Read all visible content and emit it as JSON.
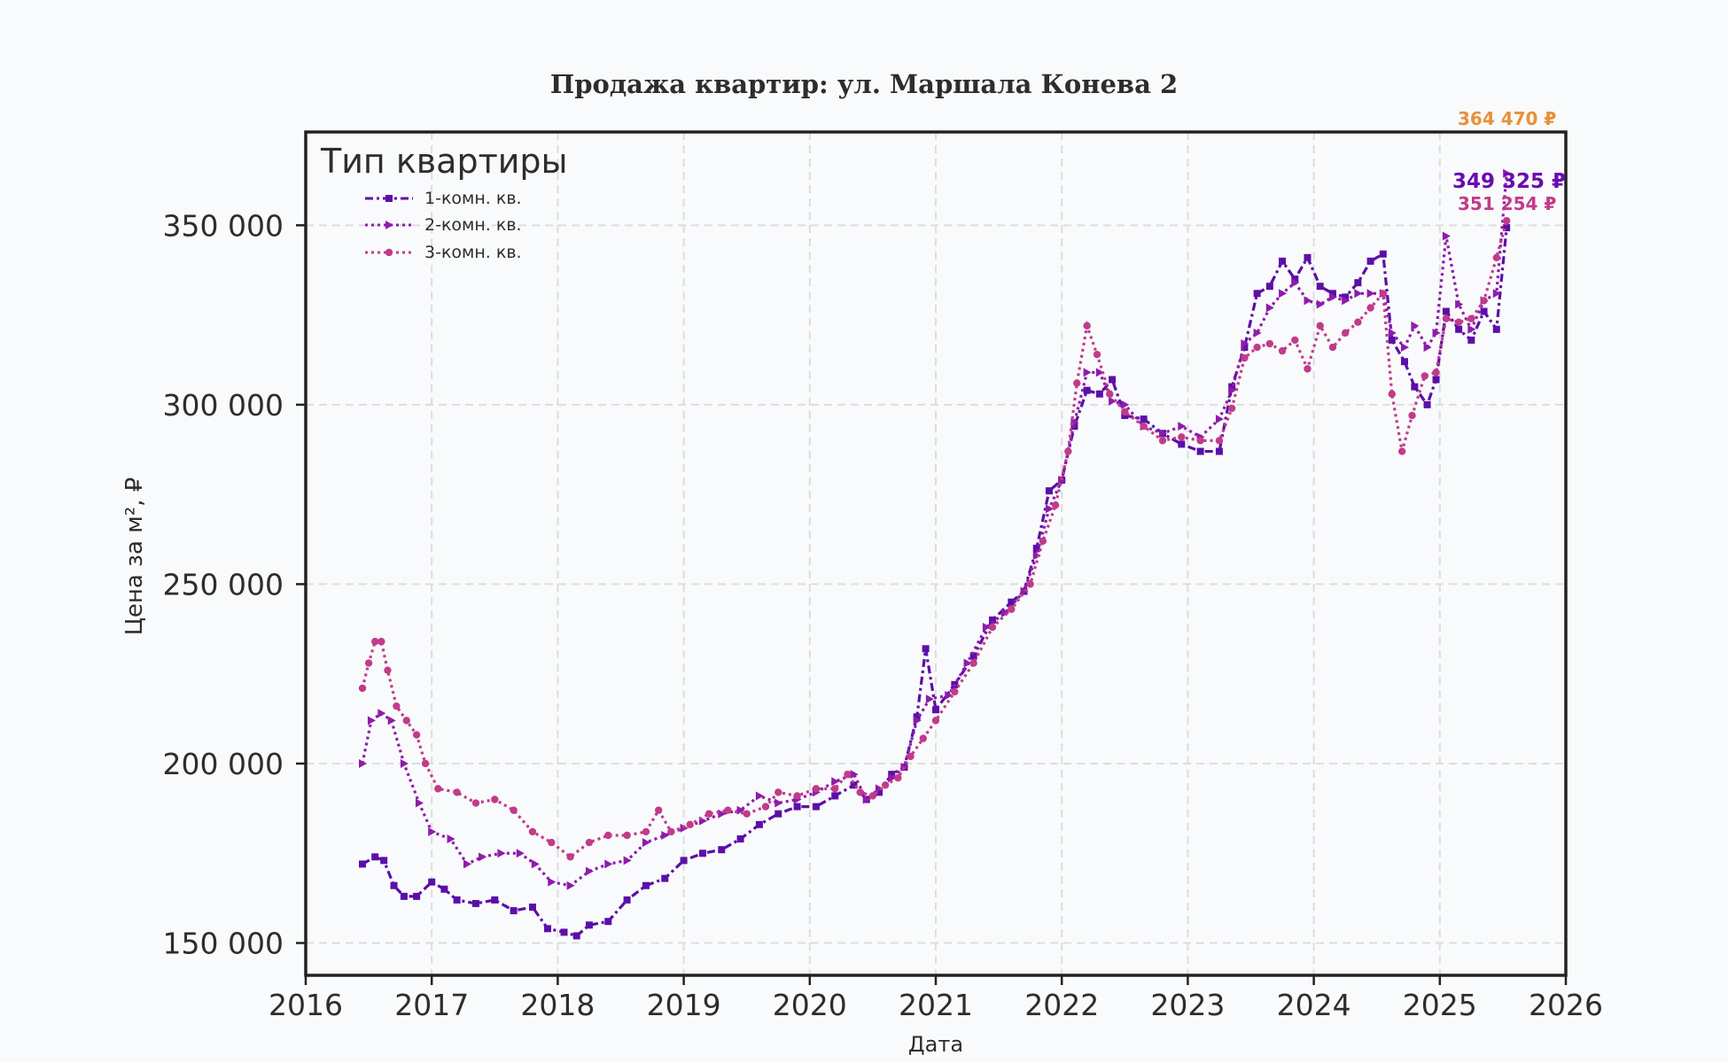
{
  "chart_data": {
    "type": "line",
    "title": "Продажа квартир: ул. Маршала Конева 2",
    "xlabel": "Дата",
    "ylabel": "Цена за м², ₽",
    "x_ticks": [
      "2016",
      "2017",
      "2018",
      "2019",
      "2020",
      "2021",
      "2022",
      "2023",
      "2024",
      "2025",
      "2026"
    ],
    "y_ticks": [
      "150 000",
      "200 000",
      "250 000",
      "300 000",
      "350 000"
    ],
    "xlim": [
      2016.0,
      2026.0
    ],
    "ylim": [
      141000,
      376000
    ],
    "grid": true,
    "legend": {
      "title": "Тип квартиры",
      "position": "top-left"
    },
    "series": [
      {
        "name": "1-комн. кв.",
        "color": "#5b0fa8",
        "marker": "square",
        "line": "dashdot",
        "end_label": "349 325 ₽",
        "points": [
          [
            2016.45,
            172000
          ],
          [
            2016.55,
            174000
          ],
          [
            2016.62,
            173000
          ],
          [
            2016.7,
            166000
          ],
          [
            2016.78,
            163000
          ],
          [
            2016.88,
            163000
          ],
          [
            2017.0,
            167000
          ],
          [
            2017.1,
            165000
          ],
          [
            2017.2,
            162000
          ],
          [
            2017.35,
            161000
          ],
          [
            2017.5,
            162000
          ],
          [
            2017.65,
            159000
          ],
          [
            2017.8,
            160000
          ],
          [
            2017.92,
            154000
          ],
          [
            2018.05,
            153000
          ],
          [
            2018.15,
            152000
          ],
          [
            2018.25,
            155000
          ],
          [
            2018.4,
            156000
          ],
          [
            2018.55,
            162000
          ],
          [
            2018.7,
            166000
          ],
          [
            2018.85,
            168000
          ],
          [
            2019.0,
            173000
          ],
          [
            2019.15,
            175000
          ],
          [
            2019.3,
            176000
          ],
          [
            2019.45,
            179000
          ],
          [
            2019.6,
            183000
          ],
          [
            2019.75,
            186000
          ],
          [
            2019.9,
            188000
          ],
          [
            2020.05,
            188000
          ],
          [
            2020.2,
            191000
          ],
          [
            2020.35,
            194000
          ],
          [
            2020.45,
            190000
          ],
          [
            2020.55,
            192000
          ],
          [
            2020.65,
            197000
          ],
          [
            2020.75,
            199000
          ],
          [
            2020.85,
            213000
          ],
          [
            2020.92,
            232000
          ],
          [
            2021.0,
            215000
          ],
          [
            2021.15,
            222000
          ],
          [
            2021.3,
            230000
          ],
          [
            2021.45,
            240000
          ],
          [
            2021.6,
            245000
          ],
          [
            2021.7,
            248000
          ],
          [
            2021.8,
            260000
          ],
          [
            2021.9,
            276000
          ],
          [
            2022.0,
            279000
          ],
          [
            2022.1,
            294000
          ],
          [
            2022.2,
            304000
          ],
          [
            2022.3,
            303000
          ],
          [
            2022.4,
            307000
          ],
          [
            2022.5,
            297000
          ],
          [
            2022.65,
            296000
          ],
          [
            2022.8,
            292000
          ],
          [
            2022.95,
            289000
          ],
          [
            2023.1,
            287000
          ],
          [
            2023.25,
            287000
          ],
          [
            2023.35,
            305000
          ],
          [
            2023.45,
            316000
          ],
          [
            2023.55,
            331000
          ],
          [
            2023.65,
            333000
          ],
          [
            2023.75,
            340000
          ],
          [
            2023.85,
            335000
          ],
          [
            2023.95,
            341000
          ],
          [
            2024.05,
            333000
          ],
          [
            2024.15,
            331000
          ],
          [
            2024.25,
            330000
          ],
          [
            2024.35,
            334000
          ],
          [
            2024.45,
            340000
          ],
          [
            2024.55,
            342000
          ],
          [
            2024.62,
            318000
          ],
          [
            2024.72,
            312000
          ],
          [
            2024.8,
            305000
          ],
          [
            2024.9,
            300000
          ],
          [
            2024.97,
            307000
          ],
          [
            2025.05,
            326000
          ],
          [
            2025.15,
            321000
          ],
          [
            2025.25,
            318000
          ],
          [
            2025.35,
            326000
          ],
          [
            2025.45,
            321000
          ],
          [
            2025.53,
            349325
          ]
        ]
      },
      {
        "name": "2-комн. кв.",
        "color": "#8e1cab",
        "marker": "triangle",
        "line": "dotted",
        "end_label": "364 470 ₽",
        "points": [
          [
            2016.45,
            200000
          ],
          [
            2016.52,
            212000
          ],
          [
            2016.6,
            214000
          ],
          [
            2016.68,
            212000
          ],
          [
            2016.78,
            200000
          ],
          [
            2016.9,
            189000
          ],
          [
            2017.0,
            181000
          ],
          [
            2017.15,
            179000
          ],
          [
            2017.28,
            172000
          ],
          [
            2017.4,
            174000
          ],
          [
            2017.55,
            175000
          ],
          [
            2017.7,
            175000
          ],
          [
            2017.82,
            172000
          ],
          [
            2017.95,
            167000
          ],
          [
            2018.1,
            166000
          ],
          [
            2018.25,
            170000
          ],
          [
            2018.4,
            172000
          ],
          [
            2018.55,
            173000
          ],
          [
            2018.7,
            178000
          ],
          [
            2018.85,
            180000
          ],
          [
            2019.0,
            182000
          ],
          [
            2019.15,
            184000
          ],
          [
            2019.3,
            186000
          ],
          [
            2019.45,
            187000
          ],
          [
            2019.6,
            191000
          ],
          [
            2019.75,
            189000
          ],
          [
            2019.9,
            190000
          ],
          [
            2020.05,
            192000
          ],
          [
            2020.2,
            195000
          ],
          [
            2020.35,
            197000
          ],
          [
            2020.45,
            190000
          ],
          [
            2020.55,
            193000
          ],
          [
            2020.65,
            196000
          ],
          [
            2020.75,
            199000
          ],
          [
            2020.85,
            212000
          ],
          [
            2020.95,
            218000
          ],
          [
            2021.1,
            219000
          ],
          [
            2021.25,
            228000
          ],
          [
            2021.4,
            238000
          ],
          [
            2021.55,
            242000
          ],
          [
            2021.7,
            248000
          ],
          [
            2021.8,
            258000
          ],
          [
            2021.9,
            271000
          ],
          [
            2022.0,
            279000
          ],
          [
            2022.1,
            295000
          ],
          [
            2022.2,
            309000
          ],
          [
            2022.3,
            309000
          ],
          [
            2022.4,
            301000
          ],
          [
            2022.5,
            300000
          ],
          [
            2022.65,
            294000
          ],
          [
            2022.8,
            292000
          ],
          [
            2022.95,
            294000
          ],
          [
            2023.1,
            291000
          ],
          [
            2023.25,
            296000
          ],
          [
            2023.35,
            304000
          ],
          [
            2023.45,
            317000
          ],
          [
            2023.55,
            320000
          ],
          [
            2023.65,
            327000
          ],
          [
            2023.75,
            331000
          ],
          [
            2023.85,
            334000
          ],
          [
            2023.95,
            329000
          ],
          [
            2024.05,
            328000
          ],
          [
            2024.15,
            330000
          ],
          [
            2024.25,
            329000
          ],
          [
            2024.35,
            331000
          ],
          [
            2024.45,
            331000
          ],
          [
            2024.55,
            331000
          ],
          [
            2024.62,
            320000
          ],
          [
            2024.72,
            316000
          ],
          [
            2024.8,
            322000
          ],
          [
            2024.9,
            316000
          ],
          [
            2024.97,
            320000
          ],
          [
            2025.05,
            347000
          ],
          [
            2025.15,
            328000
          ],
          [
            2025.25,
            321000
          ],
          [
            2025.35,
            329000
          ],
          [
            2025.45,
            331000
          ],
          [
            2025.53,
            364470
          ]
        ]
      },
      {
        "name": "3-комн. кв.",
        "color": "#c13b8a",
        "marker": "circle",
        "line": "dotted",
        "end_label": "351 254 ₽",
        "points": [
          [
            2016.45,
            221000
          ],
          [
            2016.5,
            228000
          ],
          [
            2016.55,
            234000
          ],
          [
            2016.6,
            234000
          ],
          [
            2016.65,
            226000
          ],
          [
            2016.72,
            216000
          ],
          [
            2016.8,
            212000
          ],
          [
            2016.88,
            208000
          ],
          [
            2016.95,
            200000
          ],
          [
            2017.05,
            193000
          ],
          [
            2017.2,
            192000
          ],
          [
            2017.35,
            189000
          ],
          [
            2017.5,
            190000
          ],
          [
            2017.65,
            187000
          ],
          [
            2017.8,
            181000
          ],
          [
            2017.95,
            178000
          ],
          [
            2018.1,
            174000
          ],
          [
            2018.25,
            178000
          ],
          [
            2018.4,
            180000
          ],
          [
            2018.55,
            180000
          ],
          [
            2018.7,
            181000
          ],
          [
            2018.8,
            187000
          ],
          [
            2018.9,
            181000
          ],
          [
            2019.05,
            183000
          ],
          [
            2019.2,
            186000
          ],
          [
            2019.35,
            187000
          ],
          [
            2019.5,
            186000
          ],
          [
            2019.65,
            188000
          ],
          [
            2019.75,
            192000
          ],
          [
            2019.9,
            191000
          ],
          [
            2020.05,
            193000
          ],
          [
            2020.2,
            193000
          ],
          [
            2020.3,
            197000
          ],
          [
            2020.4,
            192000
          ],
          [
            2020.5,
            191000
          ],
          [
            2020.6,
            194000
          ],
          [
            2020.7,
            196000
          ],
          [
            2020.8,
            202000
          ],
          [
            2020.9,
            207000
          ],
          [
            2021.0,
            212000
          ],
          [
            2021.15,
            220000
          ],
          [
            2021.3,
            228000
          ],
          [
            2021.45,
            238000
          ],
          [
            2021.6,
            243000
          ],
          [
            2021.75,
            250000
          ],
          [
            2021.85,
            262000
          ],
          [
            2021.95,
            272000
          ],
          [
            2022.05,
            287000
          ],
          [
            2022.12,
            306000
          ],
          [
            2022.2,
            322000
          ],
          [
            2022.28,
            314000
          ],
          [
            2022.38,
            303000
          ],
          [
            2022.5,
            298000
          ],
          [
            2022.65,
            294000
          ],
          [
            2022.8,
            290000
          ],
          [
            2022.95,
            291000
          ],
          [
            2023.1,
            290000
          ],
          [
            2023.25,
            290000
          ],
          [
            2023.35,
            299000
          ],
          [
            2023.45,
            313000
          ],
          [
            2023.55,
            316000
          ],
          [
            2023.65,
            317000
          ],
          [
            2023.75,
            315000
          ],
          [
            2023.85,
            318000
          ],
          [
            2023.95,
            310000
          ],
          [
            2024.05,
            322000
          ],
          [
            2024.15,
            316000
          ],
          [
            2024.25,
            320000
          ],
          [
            2024.35,
            323000
          ],
          [
            2024.45,
            327000
          ],
          [
            2024.55,
            331000
          ],
          [
            2024.62,
            303000
          ],
          [
            2024.7,
            287000
          ],
          [
            2024.78,
            297000
          ],
          [
            2024.88,
            308000
          ],
          [
            2024.97,
            309000
          ],
          [
            2025.05,
            324000
          ],
          [
            2025.15,
            323000
          ],
          [
            2025.25,
            324000
          ],
          [
            2025.35,
            329000
          ],
          [
            2025.45,
            341000
          ],
          [
            2025.53,
            351254
          ]
        ]
      }
    ]
  }
}
